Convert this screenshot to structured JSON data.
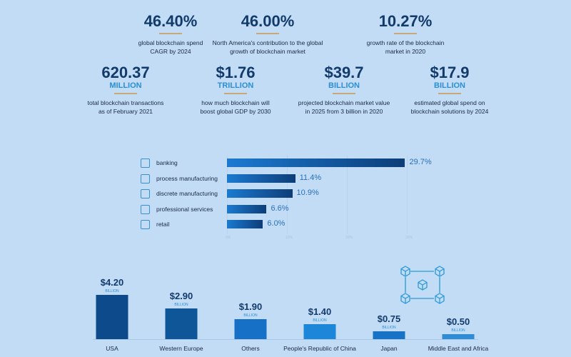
{
  "stats_top": [
    {
      "value": "46.40%",
      "desc1": "global blockchain spend",
      "desc2": "CAGR by 2024"
    },
    {
      "value": "46.00%",
      "desc1": "North America's contribution to the global",
      "desc2": "growth of blockchain market"
    },
    {
      "value": "10.27%",
      "desc1": "growth rate of the blockchain",
      "desc2": "market in 2020"
    }
  ],
  "stats_bottom": [
    {
      "value": "620.37",
      "unit": "MILLION",
      "desc1": "total blockchain transactions",
      "desc2": "as of February 2021"
    },
    {
      "value": "$1.76",
      "unit": "TRILLION",
      "desc1": "how much blockchain will",
      "desc2": "boost global GDP by 2030"
    },
    {
      "value": "$39.7",
      "unit": "BILLION",
      "desc1": "projected blockchain market value",
      "desc2": "in 2025 from 3 billion in 2020"
    },
    {
      "value": "$17.9",
      "unit": "BILLION",
      "desc1": "estimated global spend on",
      "desc2": "blockchain solutions by 2024"
    }
  ],
  "chart_data": [
    {
      "type": "bar",
      "orientation": "horizontal",
      "categories": [
        "banking",
        "process manufacturing",
        "discrete manufacturing",
        "professional services",
        "retail"
      ],
      "values": [
        29.7,
        11.4,
        10.9,
        6.6,
        6.0
      ],
      "value_labels": [
        "29.7%",
        "11.4%",
        "10.9%",
        "6.6%",
        "6.0%"
      ],
      "xticks": [
        "0%",
        "10%",
        "20%",
        "30%"
      ],
      "xlim": [
        0,
        30
      ],
      "icons": [
        "bank-icon",
        "factory-icon",
        "assembly-icon",
        "gears-icon",
        "register-icon"
      ]
    },
    {
      "type": "bar",
      "orientation": "vertical",
      "categories": [
        "USA",
        "Western Europe",
        "Others",
        "People's Republic of China",
        "Japan",
        "Middle East and Africa"
      ],
      "values": [
        4.2,
        2.9,
        1.9,
        1.4,
        0.75,
        0.5
      ],
      "value_labels": [
        "$4.20",
        "$2.90",
        "$1.90",
        "$1.40",
        "$0.75",
        "$0.50"
      ],
      "unit": "BILLION",
      "ylim": [
        0,
        4.2
      ],
      "colors": [
        "#0d4a8c",
        "#0f5699",
        "#1570c6",
        "#1c86d8",
        "#1672c4",
        "#2e8bd4"
      ]
    }
  ]
}
